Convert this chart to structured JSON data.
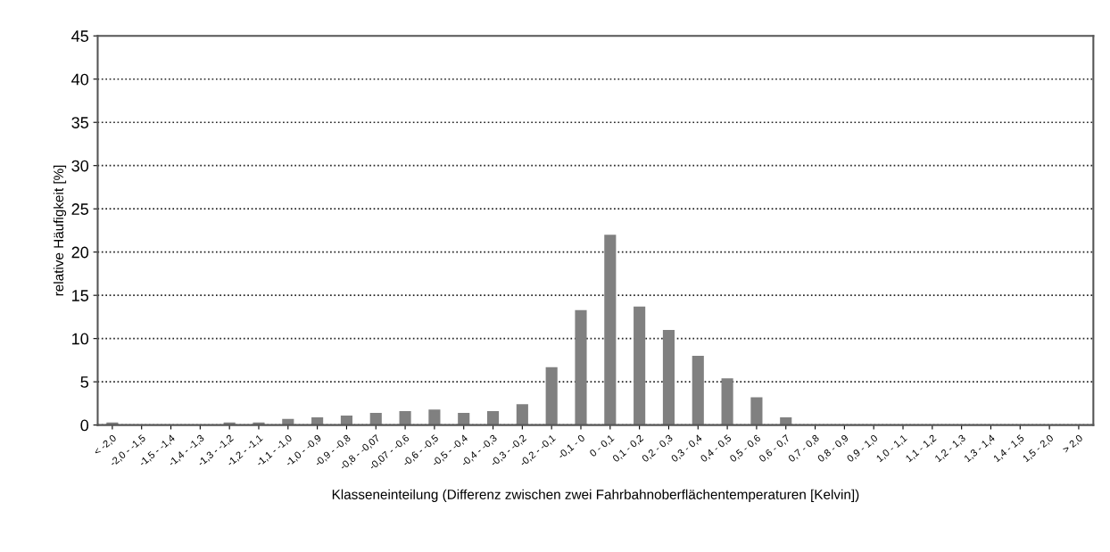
{
  "chart_data": {
    "type": "bar",
    "xlabel": "Klasseneinteilung (Differenz zwischen zwei Fahrbahnoberflächentemperaturen [Kelvin])",
    "ylabel": "relative Häufigkeit [%]",
    "categories": [
      "< -2,0",
      "-2,0 - -1,5",
      "-1,5 - -1,4",
      "-1,4 - -1,3",
      "-1,3 - -1,2",
      "-1,2 - -1,1",
      "-1,1 - -1,0",
      "-1,0 - -0,9",
      "-0,9 - -0,8",
      "-0,8 - -0,07",
      "-0,07 - -0,6",
      "-0,6 - -0,5",
      "-0,5 - -0,4",
      "-0,4 - -0,3",
      "-0,3 - -0,2",
      "-0,2 - -0,1",
      "-0,1 - 0",
      "0 - 0,1",
      "0,1 - 0,2",
      "0,2 - 0,3",
      "0,3 - 0,4",
      "0,4 - 0,5",
      "0,5 - 0,6",
      "0,6 - 0,7",
      "0,7 - 0,8",
      "0,8 - 0,9",
      "0,9 - 1,0",
      "1,0 - 1,1",
      "1,1 - 1,2",
      "1,2 - 1,3",
      "1,3 - 1,4",
      "1,4 - 1,5",
      "1,5 - 2,0",
      "> 2,0"
    ],
    "values": [
      0.3,
      0,
      0,
      0,
      0.3,
      0.3,
      0.7,
      0.9,
      1.1,
      1.4,
      1.6,
      1.8,
      1.4,
      1.6,
      2.4,
      6.7,
      13.3,
      22,
      13.7,
      11,
      8,
      5.4,
      3.2,
      0.9,
      0,
      0,
      0,
      0,
      0,
      0,
      0,
      0,
      0,
      0
    ],
    "color": "#808080",
    "ylim": [
      0,
      45
    ],
    "yticks": [
      0,
      5,
      10,
      15,
      20,
      25,
      30,
      35,
      40,
      45
    ],
    "grid": "y",
    "line_style": "dotted"
  }
}
